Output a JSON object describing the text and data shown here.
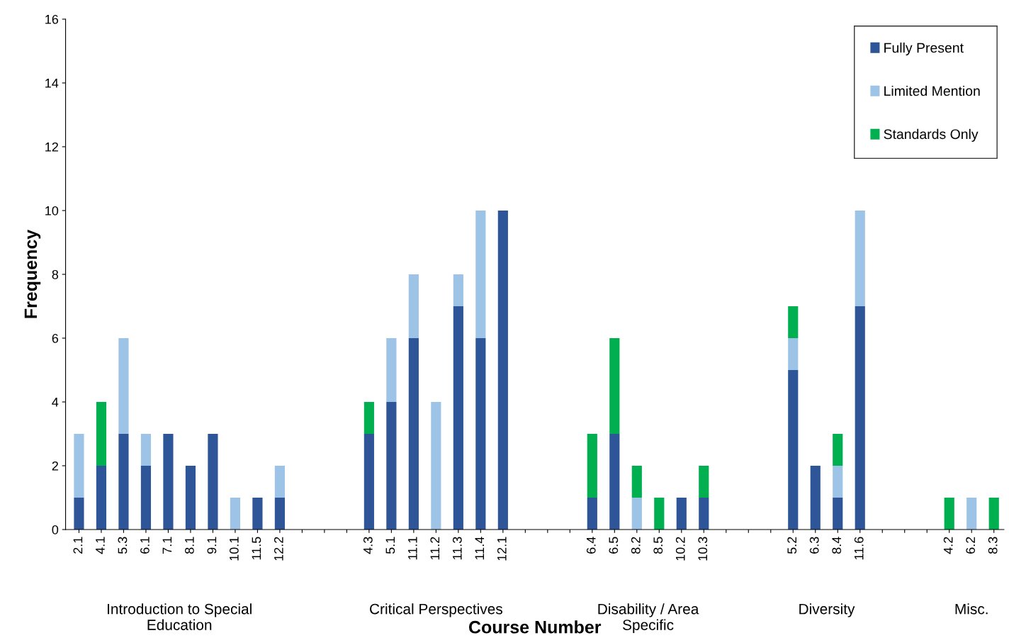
{
  "chart_data": {
    "type": "bar",
    "stacked": true,
    "xlabel": "Course Number",
    "ylabel": "Frequency",
    "categories": [
      "2.1",
      "4.1",
      "5.3",
      "6.1",
      "7.1",
      "8.1",
      "9.1",
      "10.1",
      "11.5",
      "12.2",
      null,
      null,
      null,
      "4.3",
      "5.1",
      "11.1",
      "11.2",
      "11.3",
      "11.4",
      "12.1",
      null,
      null,
      null,
      "6.4",
      "6.5",
      "8.2",
      "8.5",
      "10.2",
      "10.3",
      null,
      null,
      null,
      "5.2",
      "6.3",
      "8.4",
      "11.6",
      null,
      null,
      null,
      "4.2",
      "6.2",
      "8.3"
    ],
    "series": [
      {
        "name": "Fully Present",
        "color": "#2e5597",
        "values": [
          1,
          2,
          3,
          2,
          3,
          2,
          3,
          0,
          1,
          1,
          null,
          null,
          null,
          3,
          4,
          6,
          0,
          7,
          6,
          10,
          null,
          null,
          null,
          1,
          3,
          0,
          0,
          1,
          1,
          null,
          null,
          null,
          5,
          2,
          1,
          7,
          null,
          null,
          null,
          0,
          0,
          0
        ]
      },
      {
        "name": "Limited Mention",
        "color": "#9dc3e6",
        "values": [
          2,
          0,
          3,
          1,
          0,
          0,
          0,
          1,
          0,
          1,
          null,
          null,
          null,
          0,
          2,
          2,
          4,
          1,
          4,
          0,
          null,
          null,
          null,
          0,
          0,
          1,
          0,
          0,
          0,
          null,
          null,
          null,
          1,
          0,
          1,
          3,
          null,
          null,
          null,
          0,
          1,
          0
        ]
      },
      {
        "name": "Standards Only",
        "color": "#00b050",
        "values": [
          0,
          2,
          0,
          0,
          0,
          0,
          0,
          0,
          0,
          0,
          null,
          null,
          null,
          1,
          0,
          0,
          0,
          0,
          0,
          0,
          null,
          null,
          null,
          2,
          3,
          1,
          1,
          0,
          1,
          null,
          null,
          null,
          1,
          0,
          1,
          0,
          null,
          null,
          null,
          1,
          0,
          1
        ]
      }
    ],
    "annotations": [
      "Introduction to Special\nEducation",
      "Critical Perspectives",
      "Disability / Area\nSpecific",
      "Diversity",
      "Misc."
    ],
    "ylim": [
      0,
      16
    ],
    "yticks": [
      0,
      2,
      4,
      6,
      8,
      10,
      12,
      14,
      16
    ],
    "grid": false,
    "legend": "top right"
  }
}
